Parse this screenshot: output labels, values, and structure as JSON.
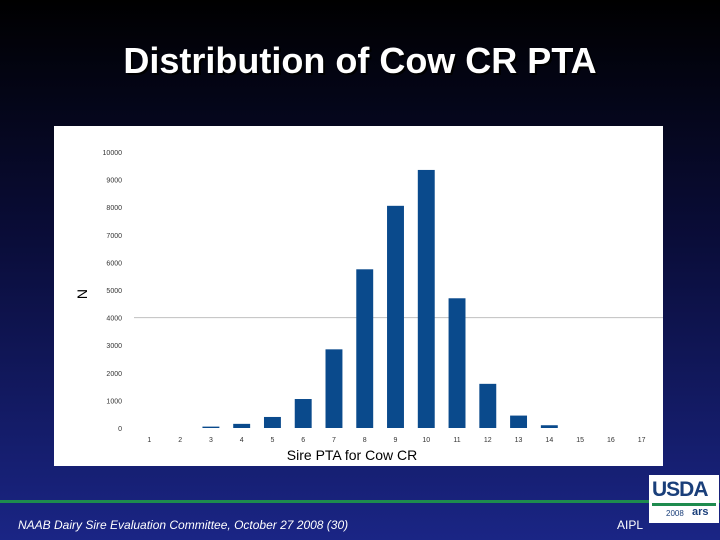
{
  "slide": {
    "title": "Distribution of Cow CR PTA",
    "footer_left": "NAAB Dairy Sire Evaluation Committee, October 27 2008 (30)",
    "footer_right": "AIPL"
  },
  "logo": {
    "text": "USDA",
    "year": "2008",
    "mark": "ars"
  },
  "colors": {
    "bar": "#0a4a8c",
    "panel": "#ffffff",
    "footer_line": "#1e8b4e"
  },
  "chart_data": {
    "type": "bar",
    "xlabel": "Sire PTA for Cow CR",
    "ylabel": "N",
    "ylim": [
      0,
      10000
    ],
    "yticks": [
      0,
      1000,
      2000,
      3000,
      4000,
      5000,
      6000,
      7000,
      8000,
      9000,
      10000
    ],
    "categories": [
      "1",
      "2",
      "3",
      "4",
      "5",
      "6",
      "7",
      "8",
      "9",
      "10",
      "11",
      "12",
      "13",
      "14",
      "15",
      "16",
      "17"
    ],
    "values": [
      0,
      0,
      50,
      150,
      400,
      1050,
      2850,
      5750,
      8050,
      9350,
      4700,
      1600,
      450,
      100,
      0,
      0,
      0
    ],
    "grid": "horizontal line at 4000"
  }
}
